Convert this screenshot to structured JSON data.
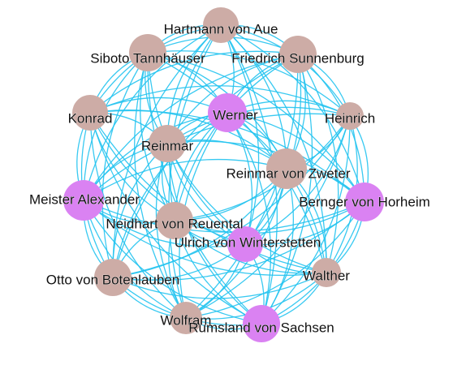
{
  "colors": {
    "edge": "#22c3f0",
    "node_group_a": "#cdaca6",
    "node_group_b": "#da82f2"
  },
  "nodes": [
    {
      "id": "hartmann",
      "label": "Hartmann von Aue",
      "group": "a"
    },
    {
      "id": "siboto",
      "label": "Siboto Tannhäuser",
      "group": "a"
    },
    {
      "id": "friedrich",
      "label": "Friedrich Sunnenburg",
      "group": "a"
    },
    {
      "id": "konrad",
      "label": "Konrad",
      "group": "a"
    },
    {
      "id": "werner",
      "label": "Werner",
      "group": "b"
    },
    {
      "id": "heinrich",
      "label": "Heinrich",
      "group": "a"
    },
    {
      "id": "reinmar",
      "label": "Reinmar",
      "group": "a"
    },
    {
      "id": "reinmar_zweter",
      "label": "Reinmar von Zweter",
      "group": "a"
    },
    {
      "id": "meister_alexander",
      "label": "Meister Alexander",
      "group": "b"
    },
    {
      "id": "bernger",
      "label": "Bernger von Horheim",
      "group": "b"
    },
    {
      "id": "neidhart",
      "label": "Neidhart von Reuental",
      "group": "a"
    },
    {
      "id": "ulrich",
      "label": "Ulrich von Winterstetten",
      "group": "b"
    },
    {
      "id": "otto",
      "label": "Otto von Botenlauben",
      "group": "a"
    },
    {
      "id": "walther",
      "label": "Walther",
      "group": "a"
    },
    {
      "id": "wolfram",
      "label": "Wolfram",
      "group": "a"
    },
    {
      "id": "rumsland",
      "label": "Rumsland von Sachsen",
      "group": "b"
    }
  ]
}
